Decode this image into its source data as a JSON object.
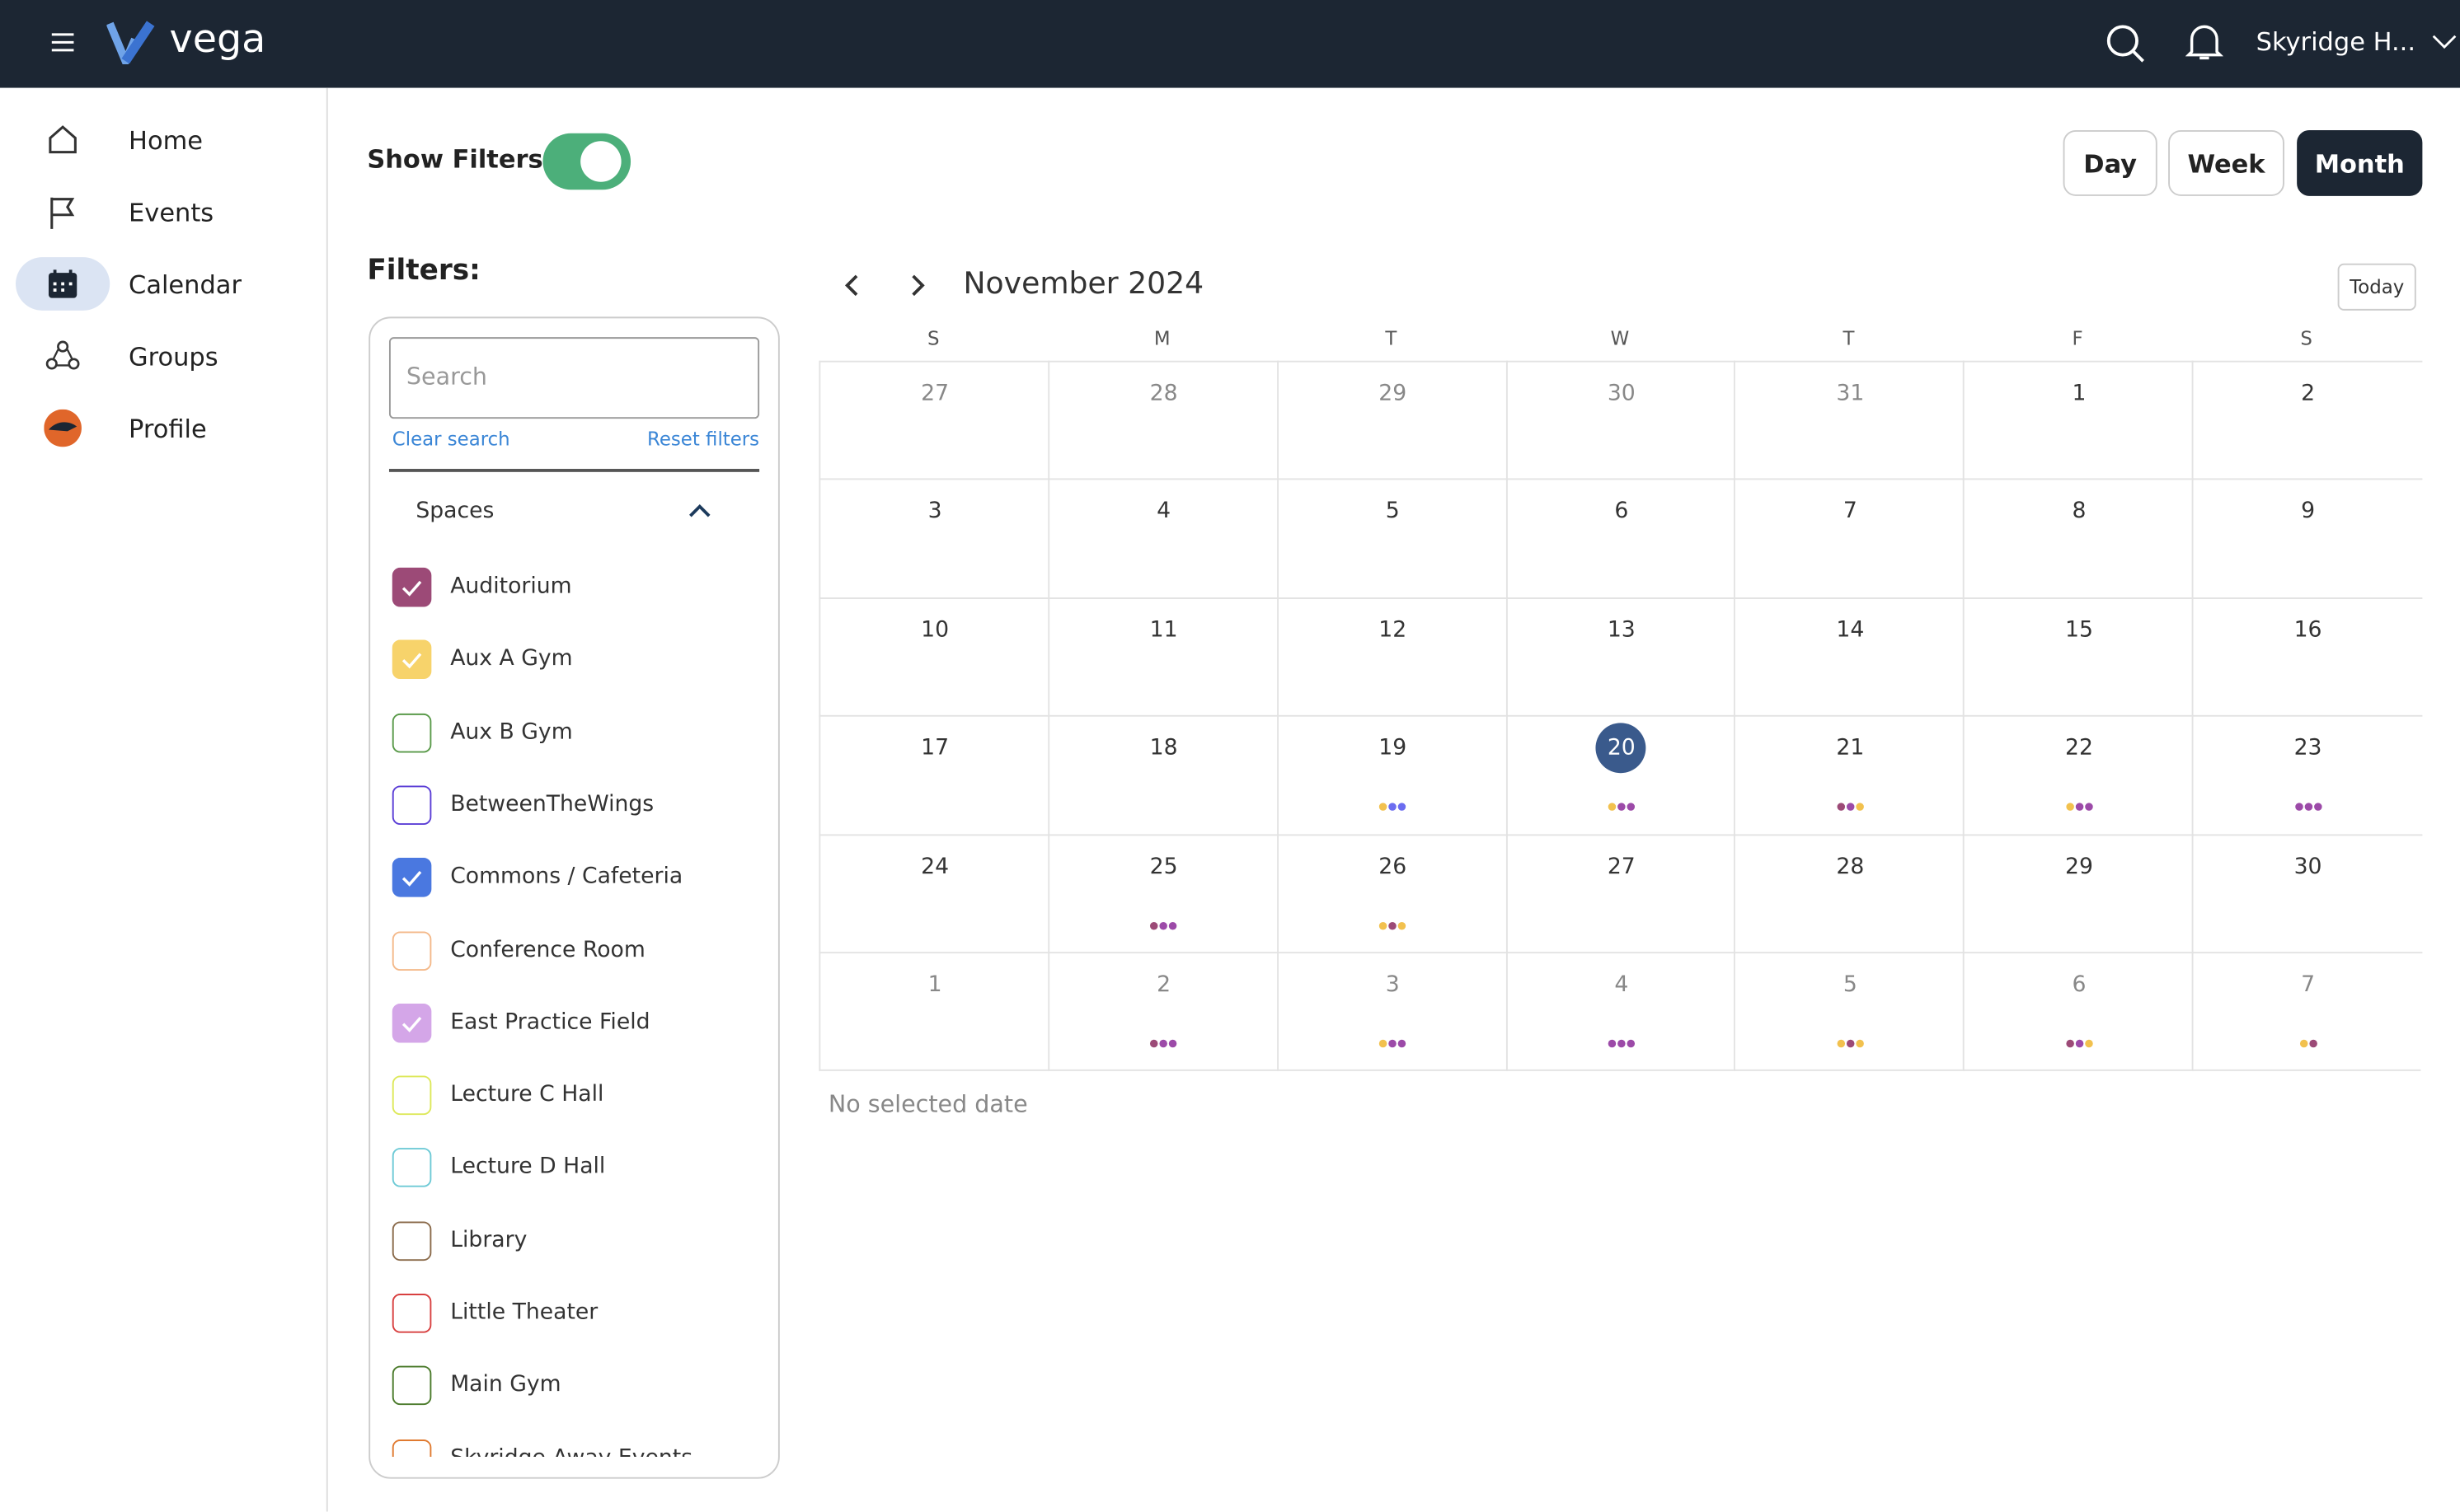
{
  "header": {
    "brand": "vega",
    "user": "Skyridge H..."
  },
  "nav": [
    {
      "label": "Home"
    },
    {
      "label": "Events"
    },
    {
      "label": "Calendar",
      "active": true
    },
    {
      "label": "Groups"
    },
    {
      "label": "Profile"
    }
  ],
  "toolbar": {
    "show_filters": "Show Filters",
    "views": [
      {
        "label": "Day"
      },
      {
        "label": "Week"
      },
      {
        "label": "Month",
        "active": true
      }
    ]
  },
  "filters": {
    "title": "Filters:",
    "search_placeholder": "Search",
    "clear": "Clear search",
    "reset": "Reset filters",
    "section": "Spaces",
    "spaces": [
      {
        "label": "Auditorium",
        "color": "#9c4a77",
        "checked": true
      },
      {
        "label": "Aux A Gym",
        "color": "#f7d36b",
        "checked": true
      },
      {
        "label": "Aux B Gym",
        "color": "#5a9a4a",
        "checked": false
      },
      {
        "label": "BetweenTheWings",
        "color": "#5b3ed6",
        "checked": false
      },
      {
        "label": "Commons / Cafeteria",
        "color": "#4a78e0",
        "checked": true
      },
      {
        "label": "Conference Room",
        "color": "#f4b98a",
        "checked": false
      },
      {
        "label": "East Practice Field",
        "color": "#d4a6e8",
        "checked": true
      },
      {
        "label": "Lecture C Hall",
        "color": "#dde85a",
        "checked": false
      },
      {
        "label": "Lecture D Hall",
        "color": "#6ecad6",
        "checked": false
      },
      {
        "label": "Library",
        "color": "#8a6a4a",
        "checked": false
      },
      {
        "label": "Little Theater",
        "color": "#d84040",
        "checked": false
      },
      {
        "label": "Main Gym",
        "color": "#4a7a2a",
        "checked": false
      },
      {
        "label": "Skyridge Away Events",
        "color": "#e07a30",
        "checked": false
      }
    ]
  },
  "calendar": {
    "month": "November 2024",
    "today_button": "Today",
    "weekdays": [
      "S",
      "M",
      "T",
      "W",
      "T",
      "F",
      "S"
    ],
    "no_selection": "No selected date",
    "weeks": [
      [
        {
          "day": 27,
          "muted": true
        },
        {
          "day": 28,
          "muted": true
        },
        {
          "day": 29,
          "muted": true
        },
        {
          "day": 30,
          "muted": true
        },
        {
          "day": 31,
          "muted": true
        },
        {
          "day": 1
        },
        {
          "day": 2
        }
      ],
      [
        {
          "day": 3
        },
        {
          "day": 4
        },
        {
          "day": 5
        },
        {
          "day": 6
        },
        {
          "day": 7
        },
        {
          "day": 8
        },
        {
          "day": 9
        }
      ],
      [
        {
          "day": 10
        },
        {
          "day": 11
        },
        {
          "day": 12
        },
        {
          "day": 13
        },
        {
          "day": 14
        },
        {
          "day": 15
        },
        {
          "day": 16
        }
      ],
      [
        {
          "day": 17
        },
        {
          "day": 18
        },
        {
          "day": 19,
          "dots": [
            "#f2c14e",
            "#6b6cf0",
            "#6b6cf0"
          ]
        },
        {
          "day": 20,
          "today": true,
          "dots": [
            "#f2c14e",
            "#9c4aa8",
            "#9c4aa8"
          ]
        },
        {
          "day": 21,
          "dots": [
            "#9c4a77",
            "#9c4aa8",
            "#f2c14e"
          ]
        },
        {
          "day": 22,
          "dots": [
            "#f2c14e",
            "#9c4aa8",
            "#9c4aa8"
          ]
        },
        {
          "day": 23,
          "dots": [
            "#9c4aa8",
            "#9c4aa8",
            "#9c4aa8"
          ]
        }
      ],
      [
        {
          "day": 24
        },
        {
          "day": 25,
          "dots": [
            "#9c4a77",
            "#9c4aa8",
            "#9c4aa8"
          ]
        },
        {
          "day": 26,
          "dots": [
            "#f2c14e",
            "#9c4a77",
            "#f2c14e"
          ]
        },
        {
          "day": 27
        },
        {
          "day": 28
        },
        {
          "day": 29
        },
        {
          "day": 30
        }
      ],
      [
        {
          "day": 1,
          "muted": true
        },
        {
          "day": 2,
          "muted": true,
          "dots": [
            "#9c4a77",
            "#9c4aa8",
            "#9c4aa8"
          ]
        },
        {
          "day": 3,
          "muted": true,
          "dots": [
            "#f2c14e",
            "#9c4aa8",
            "#9c4aa8"
          ]
        },
        {
          "day": 4,
          "muted": true,
          "dots": [
            "#9c4aa8",
            "#9c4aa8",
            "#9c4aa8"
          ]
        },
        {
          "day": 5,
          "muted": true,
          "dots": [
            "#f2c14e",
            "#9c4a77",
            "#f2c14e"
          ]
        },
        {
          "day": 6,
          "muted": true,
          "dots": [
            "#9c4a77",
            "#9c4aa8",
            "#f2c14e"
          ]
        },
        {
          "day": 7,
          "muted": true,
          "dots": [
            "#f2c14e",
            "#9c4a77"
          ]
        }
      ]
    ]
  }
}
